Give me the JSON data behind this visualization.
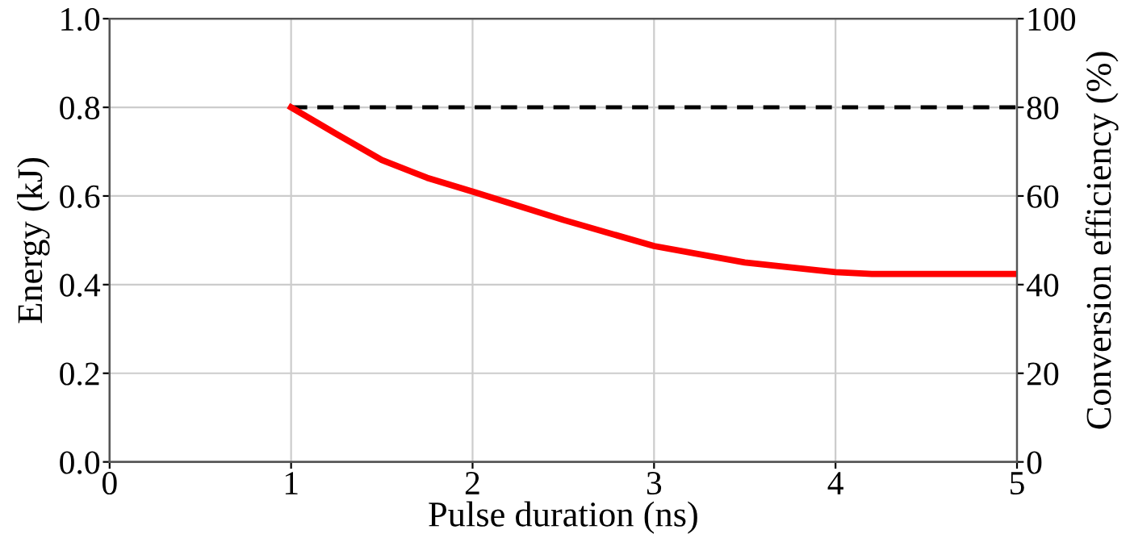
{
  "chart_data": {
    "type": "line",
    "xlabel": "Pulse duration (ns)",
    "ylabel": "Energy (kJ)",
    "y2label": "Conversion efficiency (%)",
    "xlim": [
      0,
      5
    ],
    "xticks": [
      0,
      1,
      2,
      3,
      4,
      5
    ],
    "ylim": [
      0.0,
      1.0
    ],
    "yticks": [
      {
        "value": 0,
        "label": "0.0"
      },
      0.2,
      0.4,
      0.6,
      0.8,
      {
        "value": 1,
        "label": "1.0"
      }
    ],
    "y2lim": [
      0,
      100
    ],
    "y2ticks": [
      0,
      20,
      40,
      60,
      80,
      100
    ],
    "grid": true,
    "series": [
      {
        "color": "#000000",
        "line_style": "dashed",
        "x": [
          1,
          5
        ],
        "values": [
          0.8,
          0.8
        ]
      },
      {
        "color": "#ff0000",
        "line_style": "solid",
        "x": [
          1,
          1.25,
          1.5,
          1.75,
          2,
          2.5,
          3,
          3.5,
          4,
          4.2,
          5
        ],
        "values": [
          0.8,
          0.74,
          0.681,
          0.641,
          0.61,
          0.546,
          0.487,
          0.45,
          0.428,
          0.424,
          0.424
        ]
      }
    ]
  }
}
